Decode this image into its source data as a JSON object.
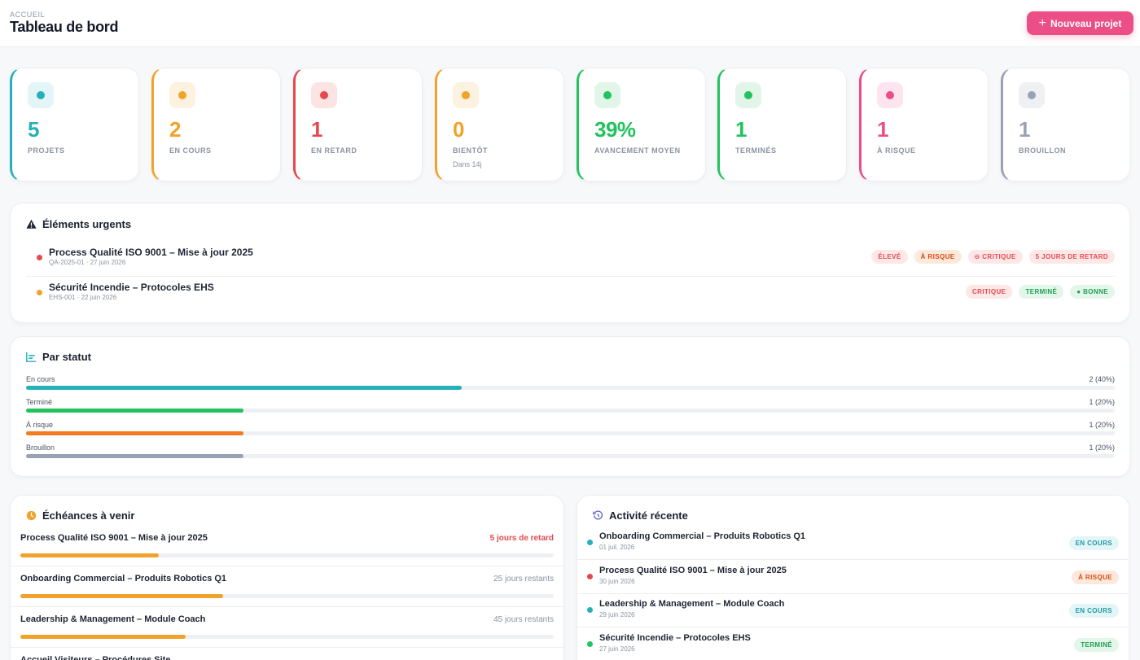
{
  "header": {
    "breadcrumb": "ACCUEIL",
    "title": "Tableau de bord",
    "new_button": "Nouveau projet",
    "new_icon": "plus-icon"
  },
  "stats": [
    {
      "value": "5",
      "label": "PROJETS",
      "sub": "",
      "color": "#26b0b8",
      "bg": "#e3f5f6"
    },
    {
      "value": "2",
      "label": "EN COURS",
      "sub": "",
      "color": "#f0a22b",
      "bg": "#fdf1df"
    },
    {
      "value": "1",
      "label": "EN RETARD",
      "sub": "",
      "color": "#e5484d",
      "bg": "#fde4e4"
    },
    {
      "value": "0",
      "label": "BIENTÔT",
      "sub": "Dans 14j",
      "color": "#f0a22b",
      "bg": "#fdf1df"
    },
    {
      "value": "39%",
      "label": "AVANCEMENT MOYEN",
      "sub": "",
      "color": "#22c35e",
      "bg": "#e1f6e8"
    },
    {
      "value": "1",
      "label": "TERMINÉS",
      "sub": "",
      "color": "#22c35e",
      "bg": "#e1f6e8"
    },
    {
      "value": "1",
      "label": "À RISQUE",
      "sub": "",
      "color": "#ea4e86",
      "bg": "#fde4ee"
    },
    {
      "value": "1",
      "label": "BROUILLON",
      "sub": "",
      "color": "#98a2b3",
      "bg": "#eef0f4"
    }
  ],
  "urgent": {
    "title": "Éléments urgents",
    "icon": "warning-icon",
    "items": [
      {
        "name": "Process Qualité ISO 9001 – Mise à jour 2025",
        "meta": "QA-2025-01 · 27 juin 2026",
        "dot": "#e5484d",
        "tags": [
          {
            "text": "ÉLEVÉ",
            "color": "#e5484d",
            "bg": "#fde7e7"
          },
          {
            "text": "À RISQUE",
            "color": "#d9480f",
            "bg": "#fde9dc"
          },
          {
            "text": "⊖ CRITIQUE",
            "color": "#e5484d",
            "bg": "#fde7e7"
          },
          {
            "text": "5 JOURS DE RETARD",
            "color": "#e5484d",
            "bg": "#fde7e7"
          }
        ]
      },
      {
        "name": "Sécurité Incendie – Protocoles EHS",
        "meta": "EHS-001 · 22 juin 2026",
        "dot": "#f0a22b",
        "tags": [
          {
            "text": "CRITIQUE",
            "color": "#e5484d",
            "bg": "#fde7e7"
          },
          {
            "text": "TERMINÉ",
            "color": "#1e9e50",
            "bg": "#e3f6ea"
          },
          {
            "text": "● BONNE",
            "color": "#1e9e50",
            "bg": "#e3f6ea"
          }
        ]
      }
    ]
  },
  "status": {
    "title": "Par statut",
    "icon": "bar-chart-icon",
    "bars": [
      {
        "label": "En cours",
        "value": "2 (40%)",
        "fraction": 0.4,
        "color": "#26b0b8"
      },
      {
        "label": "Terminé",
        "value": "1 (20%)",
        "fraction": 0.2,
        "color": "#22c35e"
      },
      {
        "label": "À risque",
        "value": "1 (20%)",
        "fraction": 0.2,
        "color": "#f37a20"
      },
      {
        "label": "Brouillon",
        "value": "1 (20%)",
        "fraction": 0.2,
        "color": "#98a2b3"
      }
    ]
  },
  "deadlines": {
    "title": "Échéances à venir",
    "icon": "clock-icon",
    "items": [
      {
        "name": "Process Qualité ISO 9001 – Mise à jour 2025",
        "remaining": "5 jours de retard",
        "late": true,
        "progress": 0.26
      },
      {
        "name": "Onboarding Commercial – Produits Robotics Q1",
        "remaining": "25 jours restants",
        "late": false,
        "progress": 0.38
      },
      {
        "name": "Leadership & Management – Module Coach",
        "remaining": "45 jours restants",
        "late": false,
        "progress": 0.31
      },
      {
        "name": "Accueil Visiteurs – Procédures Site",
        "remaining": "",
        "late": false,
        "progress": 0
      }
    ]
  },
  "activity": {
    "title": "Activité récente",
    "icon": "history-icon",
    "items": [
      {
        "name": "Onboarding Commercial – Produits Robotics Q1",
        "date": "01 juil. 2026",
        "dot": "#26b0b8",
        "tag": "EN COURS",
        "tag_color": "#1f9aa3",
        "tag_bg": "#e3f5f6"
      },
      {
        "name": "Process Qualité ISO 9001 – Mise à jour 2025",
        "date": "30 juin 2026",
        "dot": "#e5484d",
        "tag": "À RISQUE",
        "tag_color": "#d9480f",
        "tag_bg": "#fde9dc"
      },
      {
        "name": "Leadership & Management – Module Coach",
        "date": "29 juin 2026",
        "dot": "#26b0b8",
        "tag": "EN COURS",
        "tag_color": "#1f9aa3",
        "tag_bg": "#e3f5f6"
      },
      {
        "name": "Sécurité Incendie – Protocoles EHS",
        "date": "27 juin 2026",
        "dot": "#22c35e",
        "tag": "TERMINÉ",
        "tag_color": "#1e9e50",
        "tag_bg": "#e3f6ea"
      }
    ]
  }
}
